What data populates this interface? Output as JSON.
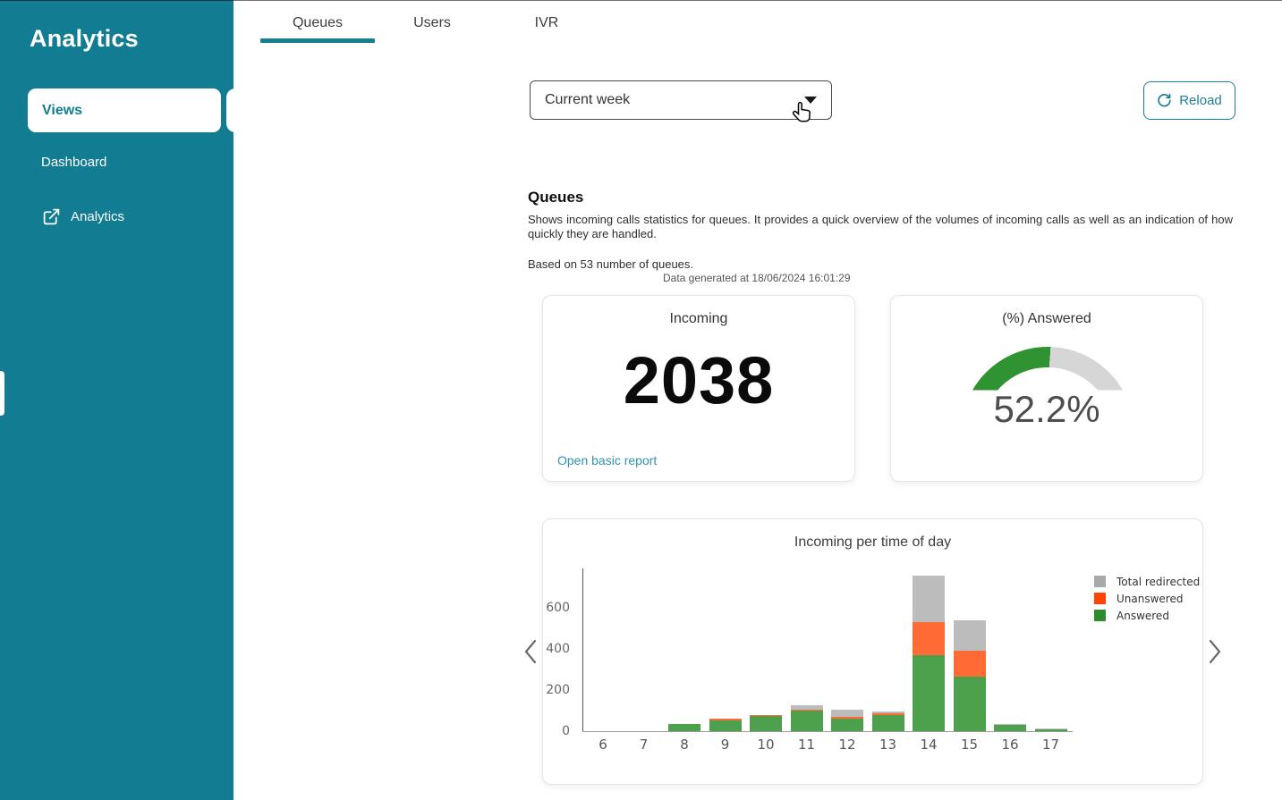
{
  "sidebar": {
    "title": "Analytics",
    "items": [
      {
        "label": "Views",
        "active": true
      },
      {
        "label": "Dashboard",
        "active": false
      },
      {
        "label": "Analytics",
        "active": false,
        "external_icon": "external-link-icon"
      }
    ]
  },
  "tabs": [
    {
      "label": "Queues",
      "active": true
    },
    {
      "label": "Users",
      "active": false
    },
    {
      "label": "IVR",
      "active": false
    }
  ],
  "controls": {
    "period_select_value": "Current week",
    "reload_label": "Reload"
  },
  "section": {
    "title": "Queues",
    "description": "Shows incoming calls statistics for queues. It provides a quick overview of the volumes of incoming calls as well as an indication of how quickly they are handled.",
    "based_on": "Based on 53 number of queues.",
    "generated_at": "Data generated at 18/06/2024 16:01:29"
  },
  "cards": {
    "incoming": {
      "title": "Incoming",
      "value": "2038",
      "link": "Open basic report"
    },
    "answered": {
      "title": "(%) Answered",
      "value": "52.2%",
      "percent": 52.2,
      "fill_color": "#2E9330",
      "track_color": "#d6d6d6"
    }
  },
  "chart_data": {
    "type": "bar",
    "stacked": true,
    "title": "Incoming per time of day",
    "xlabel": "",
    "ylabel": "",
    "categories": [
      6,
      7,
      8,
      9,
      10,
      11,
      12,
      13,
      14,
      15,
      16,
      17
    ],
    "series": [
      {
        "name": "Answered",
        "color": "#2e8b2e",
        "bar_color": "#4da14d",
        "values": [
          0,
          0,
          36,
          52,
          74,
          100,
          62,
          77,
          370,
          265,
          30,
          10
        ]
      },
      {
        "name": "Unanswered",
        "color": "#ff4500",
        "bar_color": "#ff6a35",
        "values": [
          0,
          0,
          0,
          9,
          6,
          6,
          6,
          10,
          160,
          125,
          0,
          0
        ]
      },
      {
        "name": "Total redirected",
        "color": "#a9a9a9",
        "bar_color": "#bcbcbc",
        "values": [
          0,
          0,
          0,
          0,
          0,
          20,
          36,
          10,
          225,
          150,
          5,
          2
        ]
      }
    ],
    "totals": [
      0,
      0,
      36,
      61,
      80,
      126,
      104,
      97,
      755,
      540,
      35,
      12
    ],
    "yticks": [
      0,
      200,
      400,
      600
    ],
    "ylim": [
      0,
      790
    ],
    "grid": false,
    "legend_position": "top-right",
    "legend_order": [
      2,
      1,
      0
    ]
  },
  "colors": {
    "sidebar_teal": "#127C92",
    "accent_teal": "#14808F",
    "link_teal": "#2E93AC"
  }
}
